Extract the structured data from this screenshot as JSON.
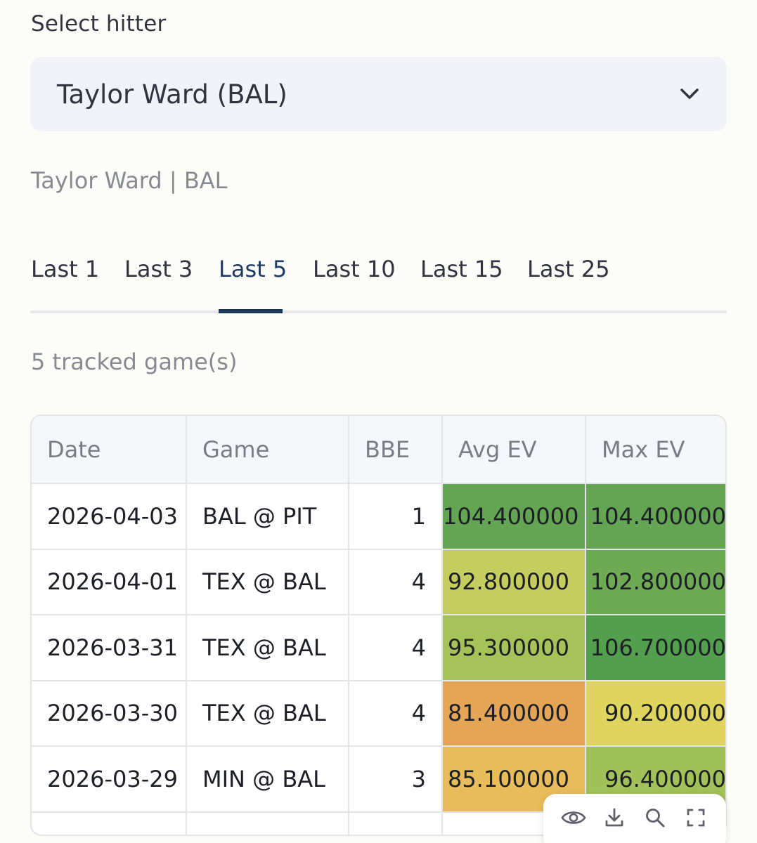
{
  "selector": {
    "label": "Select hitter",
    "value": "Taylor Ward (BAL)"
  },
  "caption": "Taylor Ward | BAL",
  "tabs": [
    {
      "label": "Last 1",
      "active": false
    },
    {
      "label": "Last 3",
      "active": false
    },
    {
      "label": "Last 5",
      "active": true
    },
    {
      "label": "Last 10",
      "active": false
    },
    {
      "label": "Last 15",
      "active": false
    },
    {
      "label": "Last 25",
      "active": false
    }
  ],
  "games_count_text": "5 tracked game(s)",
  "table": {
    "headers": [
      "Date",
      "Game",
      "BBE",
      "Avg EV",
      "Max EV"
    ],
    "rows": [
      {
        "date": "2026-04-03",
        "game": "BAL @ PIT",
        "bbe": "1",
        "avg_ev": "104.400000",
        "max_ev": "104.400000",
        "avg_color": "#63a552",
        "max_color": "#63a552"
      },
      {
        "date": "2026-04-01",
        "game": "TEX @ BAL",
        "bbe": "4",
        "avg_ev": "92.800000",
        "max_ev": "102.800000",
        "avg_color": "#c5cd5e",
        "max_color": "#6eaa54"
      },
      {
        "date": "2026-03-31",
        "game": "TEX @ BAL",
        "bbe": "4",
        "avg_ev": "95.300000",
        "max_ev": "106.700000",
        "avg_color": "#a6c359",
        "max_color": "#539f4d"
      },
      {
        "date": "2026-03-30",
        "game": "TEX @ BAL",
        "bbe": "4",
        "avg_ev": "81.400000",
        "max_ev": "90.200000",
        "avg_color": "#e5a556",
        "max_color": "#dfd55e"
      },
      {
        "date": "2026-03-29",
        "game": "MIN @ BAL",
        "bbe": "3",
        "avg_ev": "85.100000",
        "max_ev": "96.400000",
        "avg_color": "#e8bc5b",
        "max_color": "#a2c158"
      },
      {
        "date": "",
        "game": "",
        "bbe": "",
        "avg_ev": "",
        "max_ev": "",
        "avg_color": "#ffffff",
        "max_color": "#ffffff"
      }
    ]
  },
  "toolbar": {
    "icons": [
      "eye-icon",
      "download-icon",
      "search-icon",
      "fullscreen-icon"
    ]
  }
}
